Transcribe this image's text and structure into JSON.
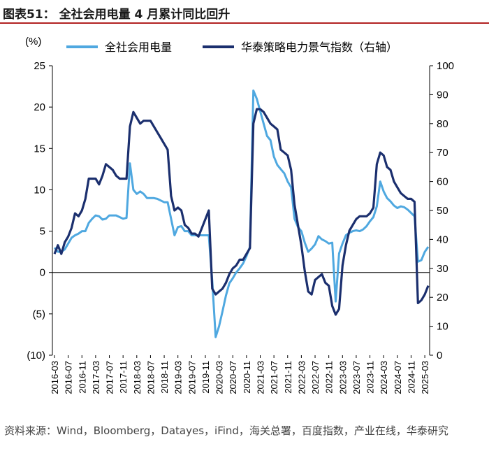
{
  "title": "图表51：  全社会用电量 4 月累计同比回升",
  "source": "资料来源：Wind，Bloomberg，Datayes，iFind，海关总署，百度指数，产业在线，华泰研究",
  "colors": {
    "series1": "#4FA8E0",
    "series2": "#1B2F6E",
    "axis": "#000000"
  },
  "chart_data": {
    "type": "line",
    "y_left": {
      "label": "(%)",
      "lim": [
        -10,
        25
      ],
      "ticks": [
        25,
        20,
        15,
        10,
        5,
        0,
        -5,
        -10
      ],
      "tick_labels": [
        "25",
        "20",
        "15",
        "10",
        "5",
        "0",
        "(5)",
        "(10)"
      ]
    },
    "y_right": {
      "lim": [
        0,
        100
      ],
      "ticks": [
        100,
        90,
        80,
        70,
        60,
        50,
        40,
        30,
        20,
        10,
        0
      ],
      "tick_labels": [
        "100",
        "90",
        "80",
        "70",
        "60",
        "50",
        "40",
        "30",
        "20",
        "10",
        "0"
      ]
    },
    "x_tick_labels": [
      "2016-03",
      "2016-07",
      "2016-11",
      "2017-03",
      "2017-07",
      "2017-11",
      "2018-03",
      "2018-07",
      "2018-11",
      "2019-03",
      "2019-07",
      "2019-11",
      "2020-03",
      "2020-07",
      "2020-11",
      "2021-03",
      "2021-07",
      "2021-11",
      "2022-03",
      "2022-07",
      "2022-11",
      "2023-03",
      "2023-07",
      "2023-11",
      "2024-03",
      "2024-07",
      "2024-11",
      "2025-03"
    ],
    "series": [
      {
        "name": "全社会用电量",
        "axis": "left",
        "points": [
          [
            "2016-03",
            3.0
          ],
          [
            "2016-04",
            2.5
          ],
          [
            "2016-05",
            2.5
          ],
          [
            "2016-06",
            2.8
          ],
          [
            "2016-07",
            3.5
          ],
          [
            "2016-08",
            4.2
          ],
          [
            "2016-09",
            4.5
          ],
          [
            "2016-10",
            4.7
          ],
          [
            "2016-11",
            5.0
          ],
          [
            "2016-12",
            5.0
          ],
          [
            "2017-01",
            6.0
          ],
          [
            "2017-02",
            6.5
          ],
          [
            "2017-03",
            6.9
          ],
          [
            "2017-04",
            6.8
          ],
          [
            "2017-05",
            6.4
          ],
          [
            "2017-06",
            6.5
          ],
          [
            "2017-07",
            6.9
          ],
          [
            "2017-08",
            6.9
          ],
          [
            "2017-09",
            6.9
          ],
          [
            "2017-10",
            6.7
          ],
          [
            "2017-11",
            6.5
          ],
          [
            "2017-12",
            6.6
          ],
          [
            "2018-01",
            13.2
          ],
          [
            "2018-02",
            10.0
          ],
          [
            "2018-03",
            9.5
          ],
          [
            "2018-04",
            9.8
          ],
          [
            "2018-05",
            9.5
          ],
          [
            "2018-06",
            9.0
          ],
          [
            "2018-07",
            9.0
          ],
          [
            "2018-08",
            9.0
          ],
          [
            "2018-09",
            8.9
          ],
          [
            "2018-10",
            8.7
          ],
          [
            "2018-11",
            8.5
          ],
          [
            "2018-12",
            8.5
          ],
          [
            "2019-01",
            6.5
          ],
          [
            "2019-02",
            4.5
          ],
          [
            "2019-03",
            5.5
          ],
          [
            "2019-04",
            5.6
          ],
          [
            "2019-05",
            5.0
          ],
          [
            "2019-06",
            5.0
          ],
          [
            "2019-07",
            4.5
          ],
          [
            "2019-08",
            4.5
          ],
          [
            "2019-09",
            4.5
          ],
          [
            "2019-10",
            4.5
          ],
          [
            "2019-11",
            4.5
          ],
          [
            "2019-12",
            4.5
          ],
          [
            "2020-01",
            -1.0
          ],
          [
            "2020-02",
            -7.8
          ],
          [
            "2020-03",
            -6.5
          ],
          [
            "2020-04",
            -4.7
          ],
          [
            "2020-05",
            -2.8
          ],
          [
            "2020-06",
            -1.3
          ],
          [
            "2020-07",
            -0.7
          ],
          [
            "2020-08",
            0.0
          ],
          [
            "2020-09",
            0.5
          ],
          [
            "2020-10",
            1.1
          ],
          [
            "2020-11",
            2.0
          ],
          [
            "2020-12",
            3.1
          ],
          [
            "2021-01",
            22.0
          ],
          [
            "2021-02",
            21.0
          ],
          [
            "2021-03",
            19.5
          ],
          [
            "2021-04",
            18.0
          ],
          [
            "2021-05",
            16.5
          ],
          [
            "2021-06",
            16.0
          ],
          [
            "2021-07",
            14.0
          ],
          [
            "2021-08",
            13.0
          ],
          [
            "2021-09",
            12.5
          ],
          [
            "2021-10",
            12.0
          ],
          [
            "2021-11",
            11.0
          ],
          [
            "2021-12",
            10.3
          ],
          [
            "2022-01",
            6.5
          ],
          [
            "2022-02",
            5.5
          ],
          [
            "2022-03",
            5.0
          ],
          [
            "2022-04",
            3.6
          ],
          [
            "2022-05",
            2.5
          ],
          [
            "2022-06",
            2.9
          ],
          [
            "2022-07",
            3.4
          ],
          [
            "2022-08",
            4.4
          ],
          [
            "2022-09",
            4.0
          ],
          [
            "2022-10",
            3.8
          ],
          [
            "2022-11",
            3.5
          ],
          [
            "2022-12",
            3.6
          ],
          [
            "2023-01",
            -3.5
          ],
          [
            "2023-02",
            2.3
          ],
          [
            "2023-03",
            3.5
          ],
          [
            "2023-04",
            4.5
          ],
          [
            "2023-05",
            4.8
          ],
          [
            "2023-06",
            5.0
          ],
          [
            "2023-07",
            5.1
          ],
          [
            "2023-08",
            5.0
          ],
          [
            "2023-09",
            5.2
          ],
          [
            "2023-10",
            5.6
          ],
          [
            "2023-11",
            6.2
          ],
          [
            "2023-12",
            6.7
          ],
          [
            "2024-01",
            8.0
          ],
          [
            "2024-02",
            11.0
          ],
          [
            "2024-03",
            9.8
          ],
          [
            "2024-04",
            9.0
          ],
          [
            "2024-05",
            8.6
          ],
          [
            "2024-06",
            8.1
          ],
          [
            "2024-07",
            7.8
          ],
          [
            "2024-08",
            8.0
          ],
          [
            "2024-09",
            7.9
          ],
          [
            "2024-10",
            7.6
          ],
          [
            "2024-11",
            7.2
          ],
          [
            "2024-12",
            6.8
          ],
          [
            "2025-01",
            1.3
          ],
          [
            "2025-02",
            1.5
          ],
          [
            "2025-03",
            2.5
          ],
          [
            "2025-04",
            3.1
          ]
        ]
      },
      {
        "name": "华泰策略电力景气指数（右轴）",
        "axis": "right",
        "points": [
          [
            "2016-03",
            35
          ],
          [
            "2016-04",
            38
          ],
          [
            "2016-05",
            35
          ],
          [
            "2016-06",
            39
          ],
          [
            "2016-07",
            41
          ],
          [
            "2016-08",
            44
          ],
          [
            "2016-09",
            49
          ],
          [
            "2016-10",
            48
          ],
          [
            "2016-11",
            50
          ],
          [
            "2016-12",
            54
          ],
          [
            "2017-01",
            61
          ],
          [
            "2017-02",
            61
          ],
          [
            "2017-03",
            61
          ],
          [
            "2017-04",
            59
          ],
          [
            "2017-05",
            62
          ],
          [
            "2017-06",
            66
          ],
          [
            "2017-07",
            65
          ],
          [
            "2017-08",
            64
          ],
          [
            "2017-09",
            62
          ],
          [
            "2017-10",
            61
          ],
          [
            "2017-11",
            61
          ],
          [
            "2017-12",
            61
          ],
          [
            "2018-01",
            79
          ],
          [
            "2018-02",
            84
          ],
          [
            "2018-03",
            82
          ],
          [
            "2018-04",
            80
          ],
          [
            "2018-05",
            81
          ],
          [
            "2018-06",
            81
          ],
          [
            "2018-07",
            81
          ],
          [
            "2018-08",
            79
          ],
          [
            "2018-09",
            77
          ],
          [
            "2018-10",
            75
          ],
          [
            "2018-11",
            73
          ],
          [
            "2018-12",
            71
          ],
          [
            "2019-01",
            55
          ],
          [
            "2019-02",
            50
          ],
          [
            "2019-03",
            51
          ],
          [
            "2019-04",
            50
          ],
          [
            "2019-05",
            45
          ],
          [
            "2019-06",
            44
          ],
          [
            "2019-07",
            42
          ],
          [
            "2019-08",
            42
          ],
          [
            "2019-09",
            41
          ],
          [
            "2019-10",
            44
          ],
          [
            "2019-11",
            47
          ],
          [
            "2019-12",
            50
          ],
          [
            "2020-01",
            23
          ],
          [
            "2020-02",
            21
          ],
          [
            "2020-03",
            22
          ],
          [
            "2020-04",
            23
          ],
          [
            "2020-05",
            25
          ],
          [
            "2020-06",
            28
          ],
          [
            "2020-07",
            30
          ],
          [
            "2020-08",
            31
          ],
          [
            "2020-09",
            33
          ],
          [
            "2020-10",
            33
          ],
          [
            "2020-11",
            35
          ],
          [
            "2020-12",
            37
          ],
          [
            "2021-01",
            80
          ],
          [
            "2021-02",
            85
          ],
          [
            "2021-03",
            85
          ],
          [
            "2021-04",
            84
          ],
          [
            "2021-05",
            82
          ],
          [
            "2021-06",
            80
          ],
          [
            "2021-07",
            79
          ],
          [
            "2021-08",
            78
          ],
          [
            "2021-09",
            71
          ],
          [
            "2021-10",
            70
          ],
          [
            "2021-11",
            69
          ],
          [
            "2021-12",
            64
          ],
          [
            "2022-01",
            52
          ],
          [
            "2022-02",
            45
          ],
          [
            "2022-03",
            38
          ],
          [
            "2022-04",
            29
          ],
          [
            "2022-05",
            22
          ],
          [
            "2022-06",
            21
          ],
          [
            "2022-07",
            26
          ],
          [
            "2022-08",
            27
          ],
          [
            "2022-09",
            28
          ],
          [
            "2022-10",
            25
          ],
          [
            "2022-11",
            24
          ],
          [
            "2022-12",
            17
          ],
          [
            "2023-01",
            14
          ],
          [
            "2023-02",
            16
          ],
          [
            "2023-03",
            31
          ],
          [
            "2023-04",
            38
          ],
          [
            "2023-05",
            43
          ],
          [
            "2023-06",
            45
          ],
          [
            "2023-07",
            47
          ],
          [
            "2023-08",
            48
          ],
          [
            "2023-09",
            48
          ],
          [
            "2023-10",
            48
          ],
          [
            "2023-11",
            49
          ],
          [
            "2023-12",
            51
          ],
          [
            "2024-01",
            66
          ],
          [
            "2024-02",
            70
          ],
          [
            "2024-03",
            69
          ],
          [
            "2024-04",
            65
          ],
          [
            "2024-05",
            64
          ],
          [
            "2024-06",
            60
          ],
          [
            "2024-07",
            58
          ],
          [
            "2024-08",
            56
          ],
          [
            "2024-09",
            55
          ],
          [
            "2024-10",
            54
          ],
          [
            "2024-11",
            54
          ],
          [
            "2024-12",
            53
          ],
          [
            "2025-01",
            18
          ],
          [
            "2025-02",
            19
          ],
          [
            "2025-03",
            21
          ],
          [
            "2025-04",
            24
          ]
        ]
      }
    ],
    "grid": false,
    "legend": "top"
  }
}
